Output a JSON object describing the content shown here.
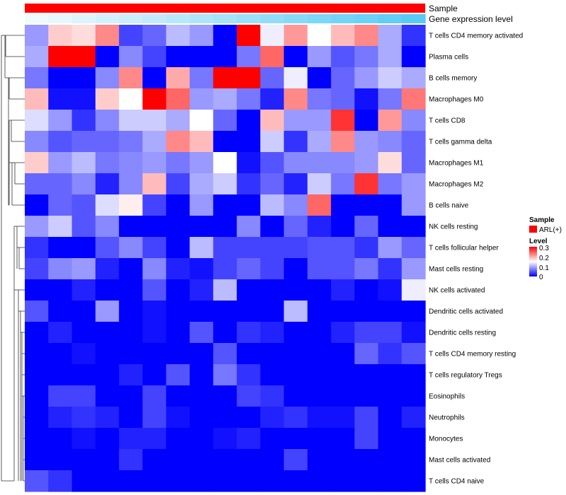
{
  "chart_data": {
    "type": "heatmap",
    "annotations": [
      {
        "label": "Sample",
        "color": "#FF0000"
      },
      {
        "label": "Gene expression level",
        "gradient": [
          "#F0FAFE",
          "#57CBF6"
        ]
      }
    ],
    "rows": [
      "T cells CD4 memory activated",
      "Plasma cells",
      "B cells memory",
      "Macrophages M0",
      "T cells CD8",
      "T cells gamma delta",
      "Macrophages M1",
      "Macrophages M2",
      "B cells naive",
      "NK cells resting",
      "T cells follicular helper",
      "Mast cells resting",
      "NK cells activated",
      "Dendritic cells activated",
      "Dendritic cells resting",
      "T cells CD4 memory resting",
      "T cells regulatory  Tregs",
      "Eosinophils",
      "Neutrophils",
      "Monocytes",
      "Mast cells activated",
      "T cells CD4 naive"
    ],
    "values": [
      [
        0.09,
        0.18,
        0.17,
        0.22,
        0.04,
        0.06,
        0.11,
        0.09,
        0.0,
        0.3,
        0.14,
        0.21,
        0.15,
        0.19,
        0.22,
        0.1,
        0.03
      ],
      [
        0.1,
        0.3,
        0.3,
        0.0,
        0.08,
        0.04,
        0.0,
        0.0,
        0.0,
        0.07,
        0.24,
        0.0,
        0.09,
        0.05,
        0.07,
        0.1,
        0.0
      ],
      [
        0.07,
        0.0,
        0.0,
        0.08,
        0.22,
        0.0,
        0.2,
        0.07,
        0.3,
        0.3,
        0.06,
        0.14,
        0.0,
        0.06,
        0.09,
        0.12,
        0.1
      ],
      [
        0.19,
        0.01,
        0.01,
        0.18,
        0.15,
        0.3,
        0.24,
        0.09,
        0.1,
        0.07,
        0.02,
        0.22,
        0.07,
        0.06,
        0.01,
        0.07,
        0.23
      ],
      [
        0.13,
        0.09,
        0.03,
        0.08,
        0.12,
        0.12,
        0.1,
        0.15,
        0.06,
        0.0,
        0.19,
        0.09,
        0.09,
        0.27,
        0.0,
        0.21,
        0.08
      ],
      [
        0.08,
        0.05,
        0.06,
        0.06,
        0.07,
        0.1,
        0.22,
        0.19,
        0.0,
        0.0,
        0.12,
        0.03,
        0.1,
        0.22,
        0.09,
        0.08,
        0.06
      ],
      [
        0.18,
        0.09,
        0.11,
        0.07,
        0.08,
        0.09,
        0.07,
        0.09,
        0.15,
        0.01,
        0.05,
        0.08,
        0.08,
        0.08,
        0.09,
        0.17,
        0.06
      ],
      [
        0.06,
        0.06,
        0.08,
        0.02,
        0.08,
        0.19,
        0.04,
        0.1,
        0.12,
        0.03,
        0.06,
        0.02,
        0.12,
        0.07,
        0.27,
        0.07,
        0.09
      ],
      [
        0.0,
        0.06,
        0.05,
        0.13,
        0.16,
        0.04,
        0.0,
        0.09,
        0.0,
        0.0,
        0.11,
        0.08,
        0.24,
        0.0,
        0.0,
        0.0,
        0.09
      ],
      [
        0.09,
        0.12,
        0.05,
        0.08,
        0.0,
        0.0,
        0.0,
        0.0,
        0.0,
        0.08,
        0.0,
        0.06,
        0.02,
        0.0,
        0.06,
        0.0,
        0.0
      ],
      [
        0.03,
        0.0,
        0.0,
        0.05,
        0.08,
        0.04,
        0.0,
        0.11,
        0.04,
        0.04,
        0.04,
        0.04,
        0.05,
        0.05,
        0.03,
        0.09,
        0.06
      ],
      [
        0.04,
        0.08,
        0.09,
        0.02,
        0.0,
        0.08,
        0.02,
        0.01,
        0.04,
        0.06,
        0.04,
        0.0,
        0.05,
        0.05,
        0.07,
        0.03,
        0.09
      ],
      [
        0.0,
        0.0,
        0.02,
        0.0,
        0.0,
        0.05,
        0.0,
        0.02,
        0.11,
        0.0,
        0.0,
        0.0,
        0.0,
        0.02,
        0.0,
        0.01,
        0.14
      ],
      [
        0.05,
        0.0,
        0.0,
        0.09,
        0.0,
        0.01,
        0.0,
        0.0,
        0.0,
        0.0,
        0.0,
        0.11,
        0.0,
        0.0,
        0.0,
        0.0,
        0.0
      ],
      [
        0.0,
        0.02,
        0.0,
        0.0,
        0.0,
        0.01,
        0.0,
        0.05,
        0.0,
        0.03,
        0.02,
        0.0,
        0.0,
        0.02,
        0.04,
        0.04,
        0.01
      ],
      [
        0.0,
        0.0,
        0.01,
        0.0,
        0.0,
        0.0,
        0.0,
        0.0,
        0.05,
        0.0,
        0.0,
        0.0,
        0.0,
        0.0,
        0.06,
        0.03,
        0.05
      ],
      [
        0.0,
        0.0,
        0.0,
        0.0,
        0.02,
        0.0,
        0.05,
        0.0,
        0.07,
        0.03,
        0.0,
        0.0,
        0.0,
        0.0,
        0.0,
        0.0,
        0.0
      ],
      [
        0.0,
        0.04,
        0.04,
        0.0,
        0.0,
        0.04,
        0.0,
        0.0,
        0.0,
        0.04,
        0.03,
        0.0,
        0.0,
        0.0,
        0.0,
        0.0,
        0.0
      ],
      [
        0.0,
        0.02,
        0.03,
        0.02,
        0.0,
        0.04,
        0.01,
        0.0,
        0.0,
        0.0,
        0.02,
        0.03,
        0.01,
        0.01,
        0.04,
        0.0,
        0.02
      ],
      [
        0.0,
        0.0,
        0.01,
        0.0,
        0.02,
        0.02,
        0.0,
        0.0,
        0.01,
        0.02,
        0.0,
        0.0,
        0.0,
        0.0,
        0.04,
        0.0,
        0.0
      ],
      [
        0.0,
        0.0,
        0.0,
        0.0,
        0.03,
        0.0,
        0.0,
        0.0,
        0.0,
        0.0,
        0.0,
        0.04,
        0.0,
        0.0,
        0.0,
        0.0,
        0.0
      ],
      [
        0.05,
        0.03,
        0.0,
        0.0,
        0.0,
        0.0,
        0.0,
        0.0,
        0.0,
        0.0,
        0.0,
        0.0,
        0.0,
        0.0,
        0.0,
        0.0,
        0.0
      ]
    ],
    "gene_expression_level": [
      0.0,
      0.06,
      0.12,
      0.19,
      0.25,
      0.31,
      0.37,
      0.44,
      0.5,
      0.56,
      0.62,
      0.69,
      0.75,
      0.81,
      0.87,
      0.94,
      1.0
    ],
    "color_scale": {
      "min": 0,
      "mid": 0.15,
      "max": 0.3,
      "colors": [
        "#0000FF",
        "#FFFFFF",
        "#FF0000"
      ]
    },
    "legend": {
      "position": "right",
      "sample_title": "Sample",
      "sample_entry": "ARL(+)",
      "level_title": "Level",
      "level_ticks": [
        "0.3",
        "0.2",
        "0.1",
        "0"
      ]
    },
    "row_dendrogram": true
  }
}
